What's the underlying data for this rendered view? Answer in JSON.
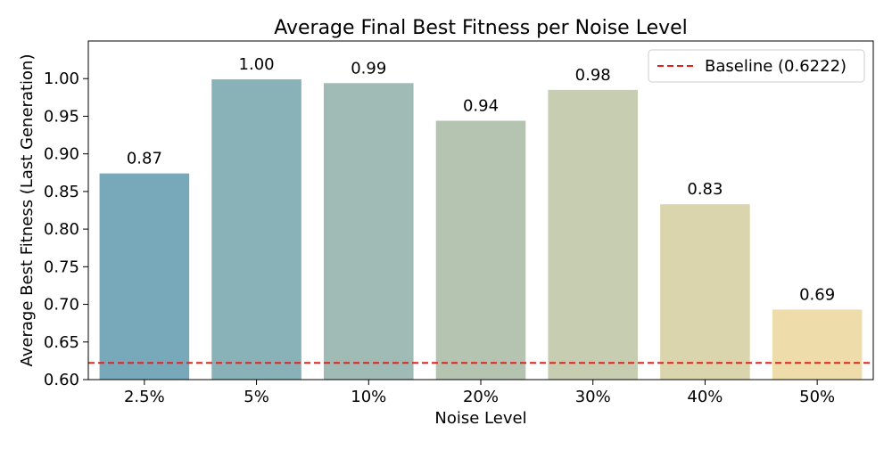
{
  "chart_data": {
    "type": "bar",
    "title": "Average Final Best Fitness per Noise Level",
    "xlabel": "Noise Level",
    "ylabel": "Average Best Fitness (Last Generation)",
    "categories": [
      "2.5%",
      "5%",
      "10%",
      "20%",
      "30%",
      "40%",
      "50%"
    ],
    "values": [
      0.874,
      0.999,
      0.994,
      0.944,
      0.985,
      0.833,
      0.693
    ],
    "value_labels": [
      "0.87",
      "1.00",
      "0.99",
      "0.94",
      "0.98",
      "0.83",
      "0.69"
    ],
    "bar_colors": [
      "#77a9ba",
      "#89b1b8",
      "#a0bab5",
      "#b4c4b1",
      "#c7cdb1",
      "#dad5ad",
      "#efdcab"
    ],
    "ylim": [
      0.6,
      1.05
    ],
    "yticks": [
      "0.60",
      "0.65",
      "0.70",
      "0.75",
      "0.80",
      "0.85",
      "0.90",
      "0.95",
      "1.00"
    ],
    "baseline": {
      "value": 0.6222,
      "label": "Baseline (0.6222)",
      "color": "#e8201d",
      "style": "dashed"
    },
    "legend_position": "top-right",
    "grid": false
  }
}
